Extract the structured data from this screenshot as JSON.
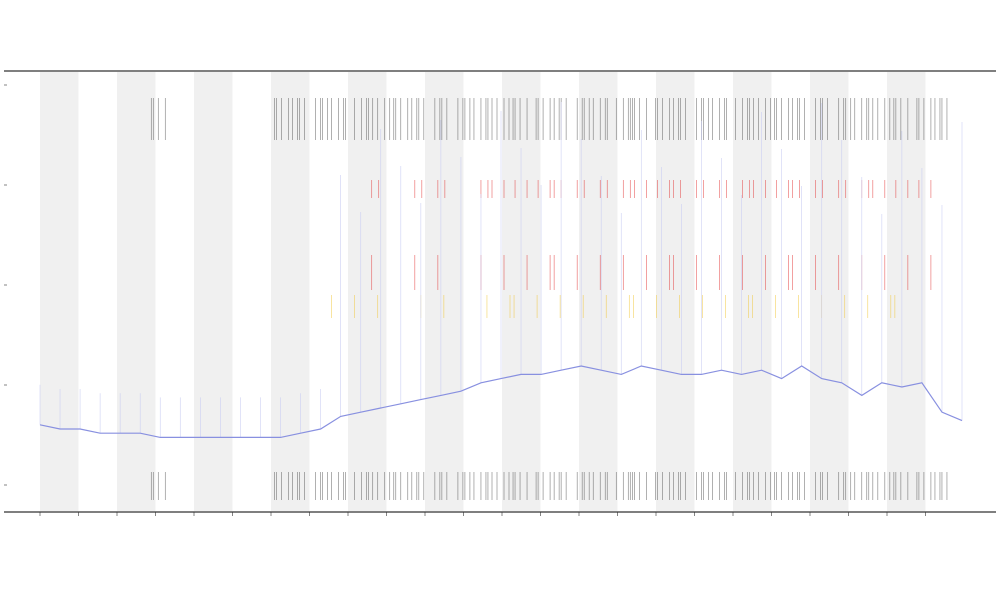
{
  "chart_data": {
    "type": "line",
    "title": "",
    "xlabel": "",
    "ylabel": "",
    "legend_text": "",
    "shaded_bands": true,
    "x_ticks": [
      "",
      "",
      "",
      "",
      "",
      "",
      "",
      "",
      "",
      "",
      "",
      "",
      "",
      "",
      "",
      "",
      "",
      "",
      "",
      "",
      "",
      "",
      "",
      "",
      ""
    ],
    "y_ticks": [
      "",
      "",
      "",
      "",
      ""
    ],
    "colors": {
      "line": "#8890e0",
      "fill": "#c9cdf3",
      "band": "#f0f0f0",
      "marker_dark": "#444444",
      "marker_red": "#e02020",
      "marker_yellow": "#f0c020",
      "axis": "#333333"
    },
    "series": [
      {
        "values": [
          0.06,
          0.05,
          0.05,
          0.04,
          0.04,
          0.04,
          0.03,
          0.03,
          0.03,
          0.03,
          0.03,
          0.03,
          0.03,
          0.04,
          0.05,
          0.08,
          0.09,
          0.1,
          0.11,
          0.12,
          0.13,
          0.14,
          0.16,
          0.17,
          0.18,
          0.18,
          0.19,
          0.2,
          0.19,
          0.18,
          0.2,
          0.19,
          0.18,
          0.18,
          0.19,
          0.18,
          0.19,
          0.17,
          0.2,
          0.17,
          0.16,
          0.13,
          0.16,
          0.15,
          0.16,
          0.09,
          0.07
        ]
      }
    ],
    "events": {
      "dark_ticks": [
        6,
        12,
        13,
        14,
        15,
        16,
        17,
        18,
        19,
        20,
        21,
        22,
        23,
        24,
        25,
        26,
        27,
        28,
        29,
        30,
        31,
        32,
        33,
        34,
        35,
        36,
        37,
        38,
        39,
        40,
        41,
        42,
        43,
        44,
        45
      ],
      "red_ticks": [
        17,
        19,
        20,
        22,
        23,
        24,
        25,
        26,
        27,
        28,
        29,
        30,
        31,
        32,
        33,
        34,
        35,
        36,
        37,
        38,
        39,
        40,
        41,
        42,
        43,
        44
      ],
      "yellow_ticks": [
        15,
        16,
        17,
        19,
        20,
        22,
        23,
        24,
        25,
        26,
        27,
        28,
        29,
        30,
        31,
        32,
        33,
        34,
        35,
        36,
        37,
        38,
        39,
        40,
        41,
        42,
        43
      ]
    }
  }
}
